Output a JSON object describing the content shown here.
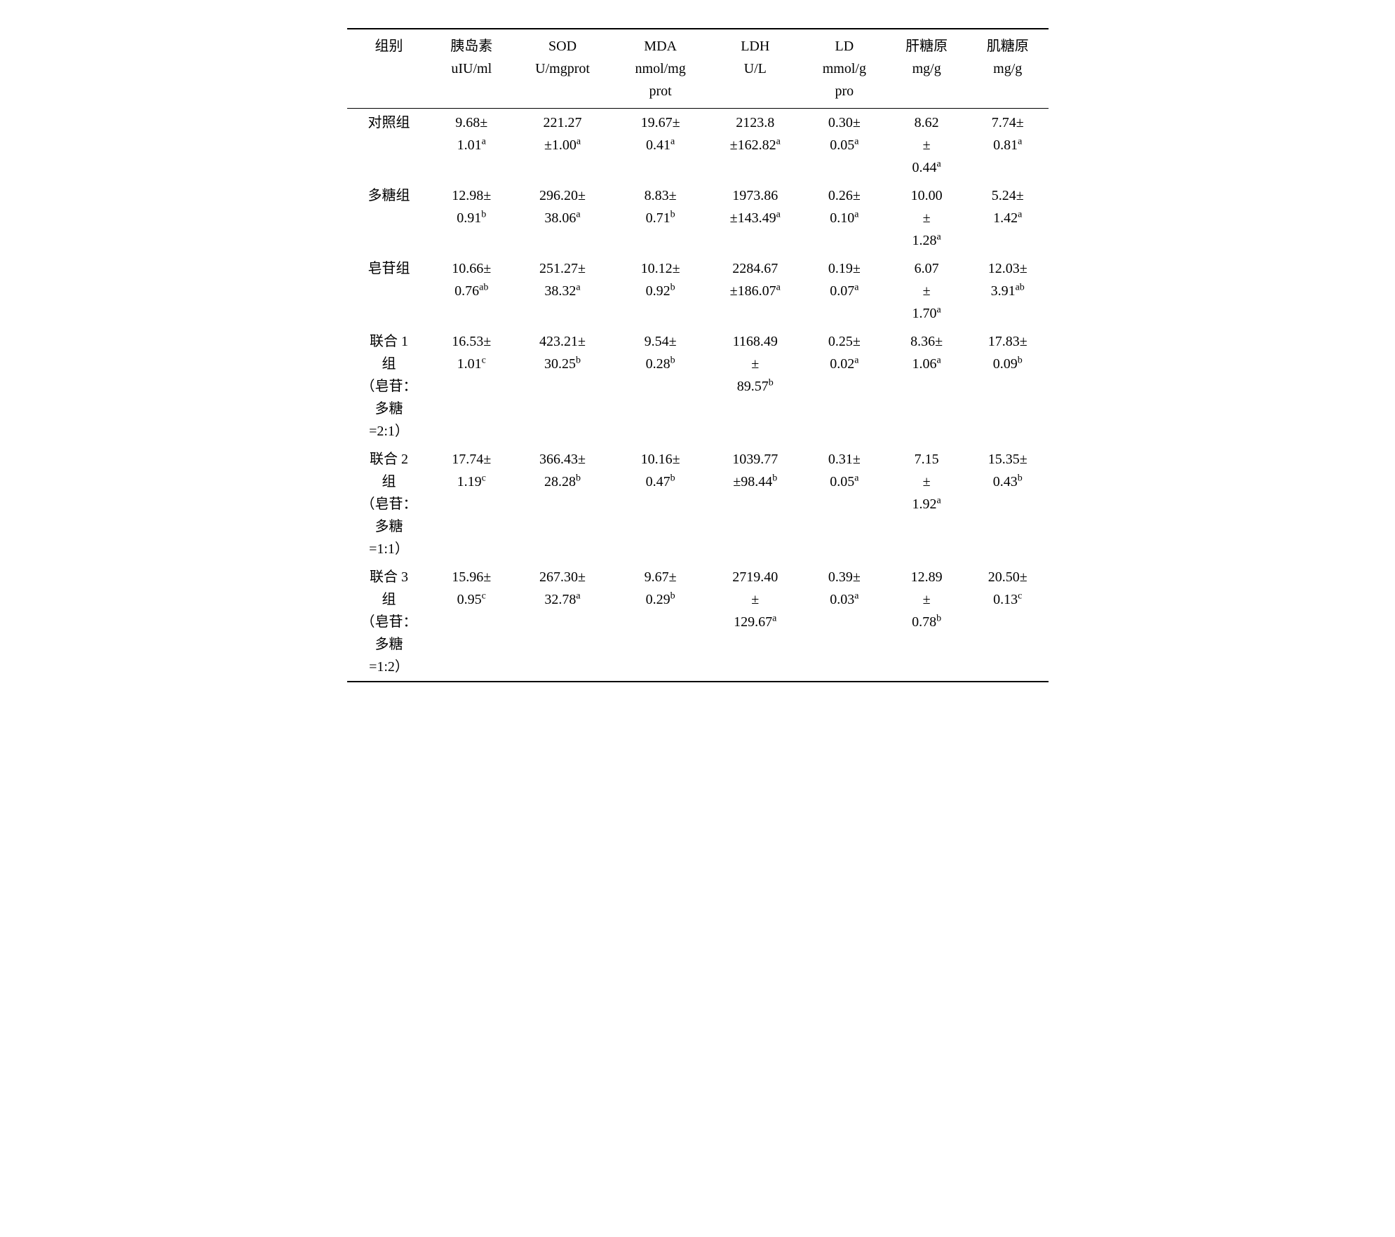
{
  "table": {
    "columns": [
      "组别",
      "胰岛素<br>uIU/ml",
      "SOD<br>U/mgprot",
      "MDA<br>nmol/mg<br>prot",
      "LDH<br>U/L",
      "LD<br>mmol/g<br>pro",
      "肝糖原<br>mg/g",
      "肌糖原<br>mg/g"
    ],
    "rows": [
      {
        "group": "对照组",
        "cells": [
          {
            "v": "9.68±<br>1.01",
            "sup": "a"
          },
          {
            "v": "221.27<br>±1.00",
            "sup": "a"
          },
          {
            "v": "19.67±<br>0.41",
            "sup": "a"
          },
          {
            "v": "2123.8<br>±162.82",
            "sup": "a"
          },
          {
            "v": "0.30±<br>0.05",
            "sup": "a"
          },
          {
            "v": "8.62<br>±<br>0.44",
            "sup": "a"
          },
          {
            "v": "7.74±<br>0.81",
            "sup": "a"
          }
        ]
      },
      {
        "group": "多糖组",
        "cells": [
          {
            "v": "12.98±<br>0.91",
            "sup": "b"
          },
          {
            "v": "296.20±<br>38.06",
            "sup": "a"
          },
          {
            "v": "8.83±<br>0.71",
            "sup": "b"
          },
          {
            "v": "1973.86<br>±143.49",
            "sup": "a"
          },
          {
            "v": "0.26±<br>0.10",
            "sup": "a"
          },
          {
            "v": "10.00<br>±<br>1.28",
            "sup": "a"
          },
          {
            "v": "5.24±<br>1.42",
            "sup": "a"
          }
        ]
      },
      {
        "group": "皂苷组",
        "cells": [
          {
            "v": "10.66±<br>0.76",
            "sup": "ab"
          },
          {
            "v": "251.27±<br>38.32",
            "sup": "a"
          },
          {
            "v": "10.12±<br>0.92",
            "sup": "b"
          },
          {
            "v": "2284.67<br>±186.07",
            "sup": "a"
          },
          {
            "v": "0.19±<br>0.07",
            "sup": "a"
          },
          {
            "v": "6.07<br>±<br>1.70",
            "sup": "a"
          },
          {
            "v": "12.03±<br>3.91",
            "sup": "ab"
          }
        ]
      },
      {
        "group": "联合 1<br>组<br>（皂苷：<br>多糖<br>=2:1）",
        "cells": [
          {
            "v": "16.53±<br>1.01",
            "sup": "c"
          },
          {
            "v": "423.21±<br>30.25",
            "sup": "b"
          },
          {
            "v": "9.54±<br>0.28",
            "sup": "b"
          },
          {
            "v": "1168.49<br>±<br>89.57",
            "sup": "b"
          },
          {
            "v": "0.25±<br>0.02",
            "sup": "a"
          },
          {
            "v": "8.36±<br>1.06",
            "sup": "a"
          },
          {
            "v": "17.83±<br>0.09",
            "sup": "b"
          }
        ]
      },
      {
        "group": "联合 2<br>组<br>（皂苷：<br>多糖<br>=1:1）",
        "cells": [
          {
            "v": "17.74±<br>1.19",
            "sup": "c"
          },
          {
            "v": "366.43±<br>28.28",
            "sup": "b"
          },
          {
            "v": "10.16±<br>0.47",
            "sup": "b"
          },
          {
            "v": "1039.77<br>±98.44",
            "sup": "b"
          },
          {
            "v": "0.31±<br>0.05",
            "sup": "a"
          },
          {
            "v": "7.15<br>±<br>1.92",
            "sup": "a"
          },
          {
            "v": "15.35±<br>0.43",
            "sup": "b"
          }
        ]
      },
      {
        "group": "联合 3<br>组<br>（皂苷：<br>多糖<br>=1:2）",
        "cells": [
          {
            "v": "15.96±<br>0.95",
            "sup": "c"
          },
          {
            "v": "267.30±<br>32.78",
            "sup": "a"
          },
          {
            "v": "9.67±<br>0.29",
            "sup": "b"
          },
          {
            "v": "2719.40<br>±<br>129.67",
            "sup": "a"
          },
          {
            "v": "0.39±<br>0.03",
            "sup": "a"
          },
          {
            "v": "12.89<br>±<br>0.78",
            "sup": "b"
          },
          {
            "v": "20.50±<br>0.13",
            "sup": "c"
          }
        ]
      }
    ],
    "style": {
      "border_color": "#000000",
      "background_color": "#ffffff",
      "font_family": "SimSun",
      "header_fontsize": 20,
      "cell_fontsize": 20,
      "sup_fontsize": 14
    }
  }
}
